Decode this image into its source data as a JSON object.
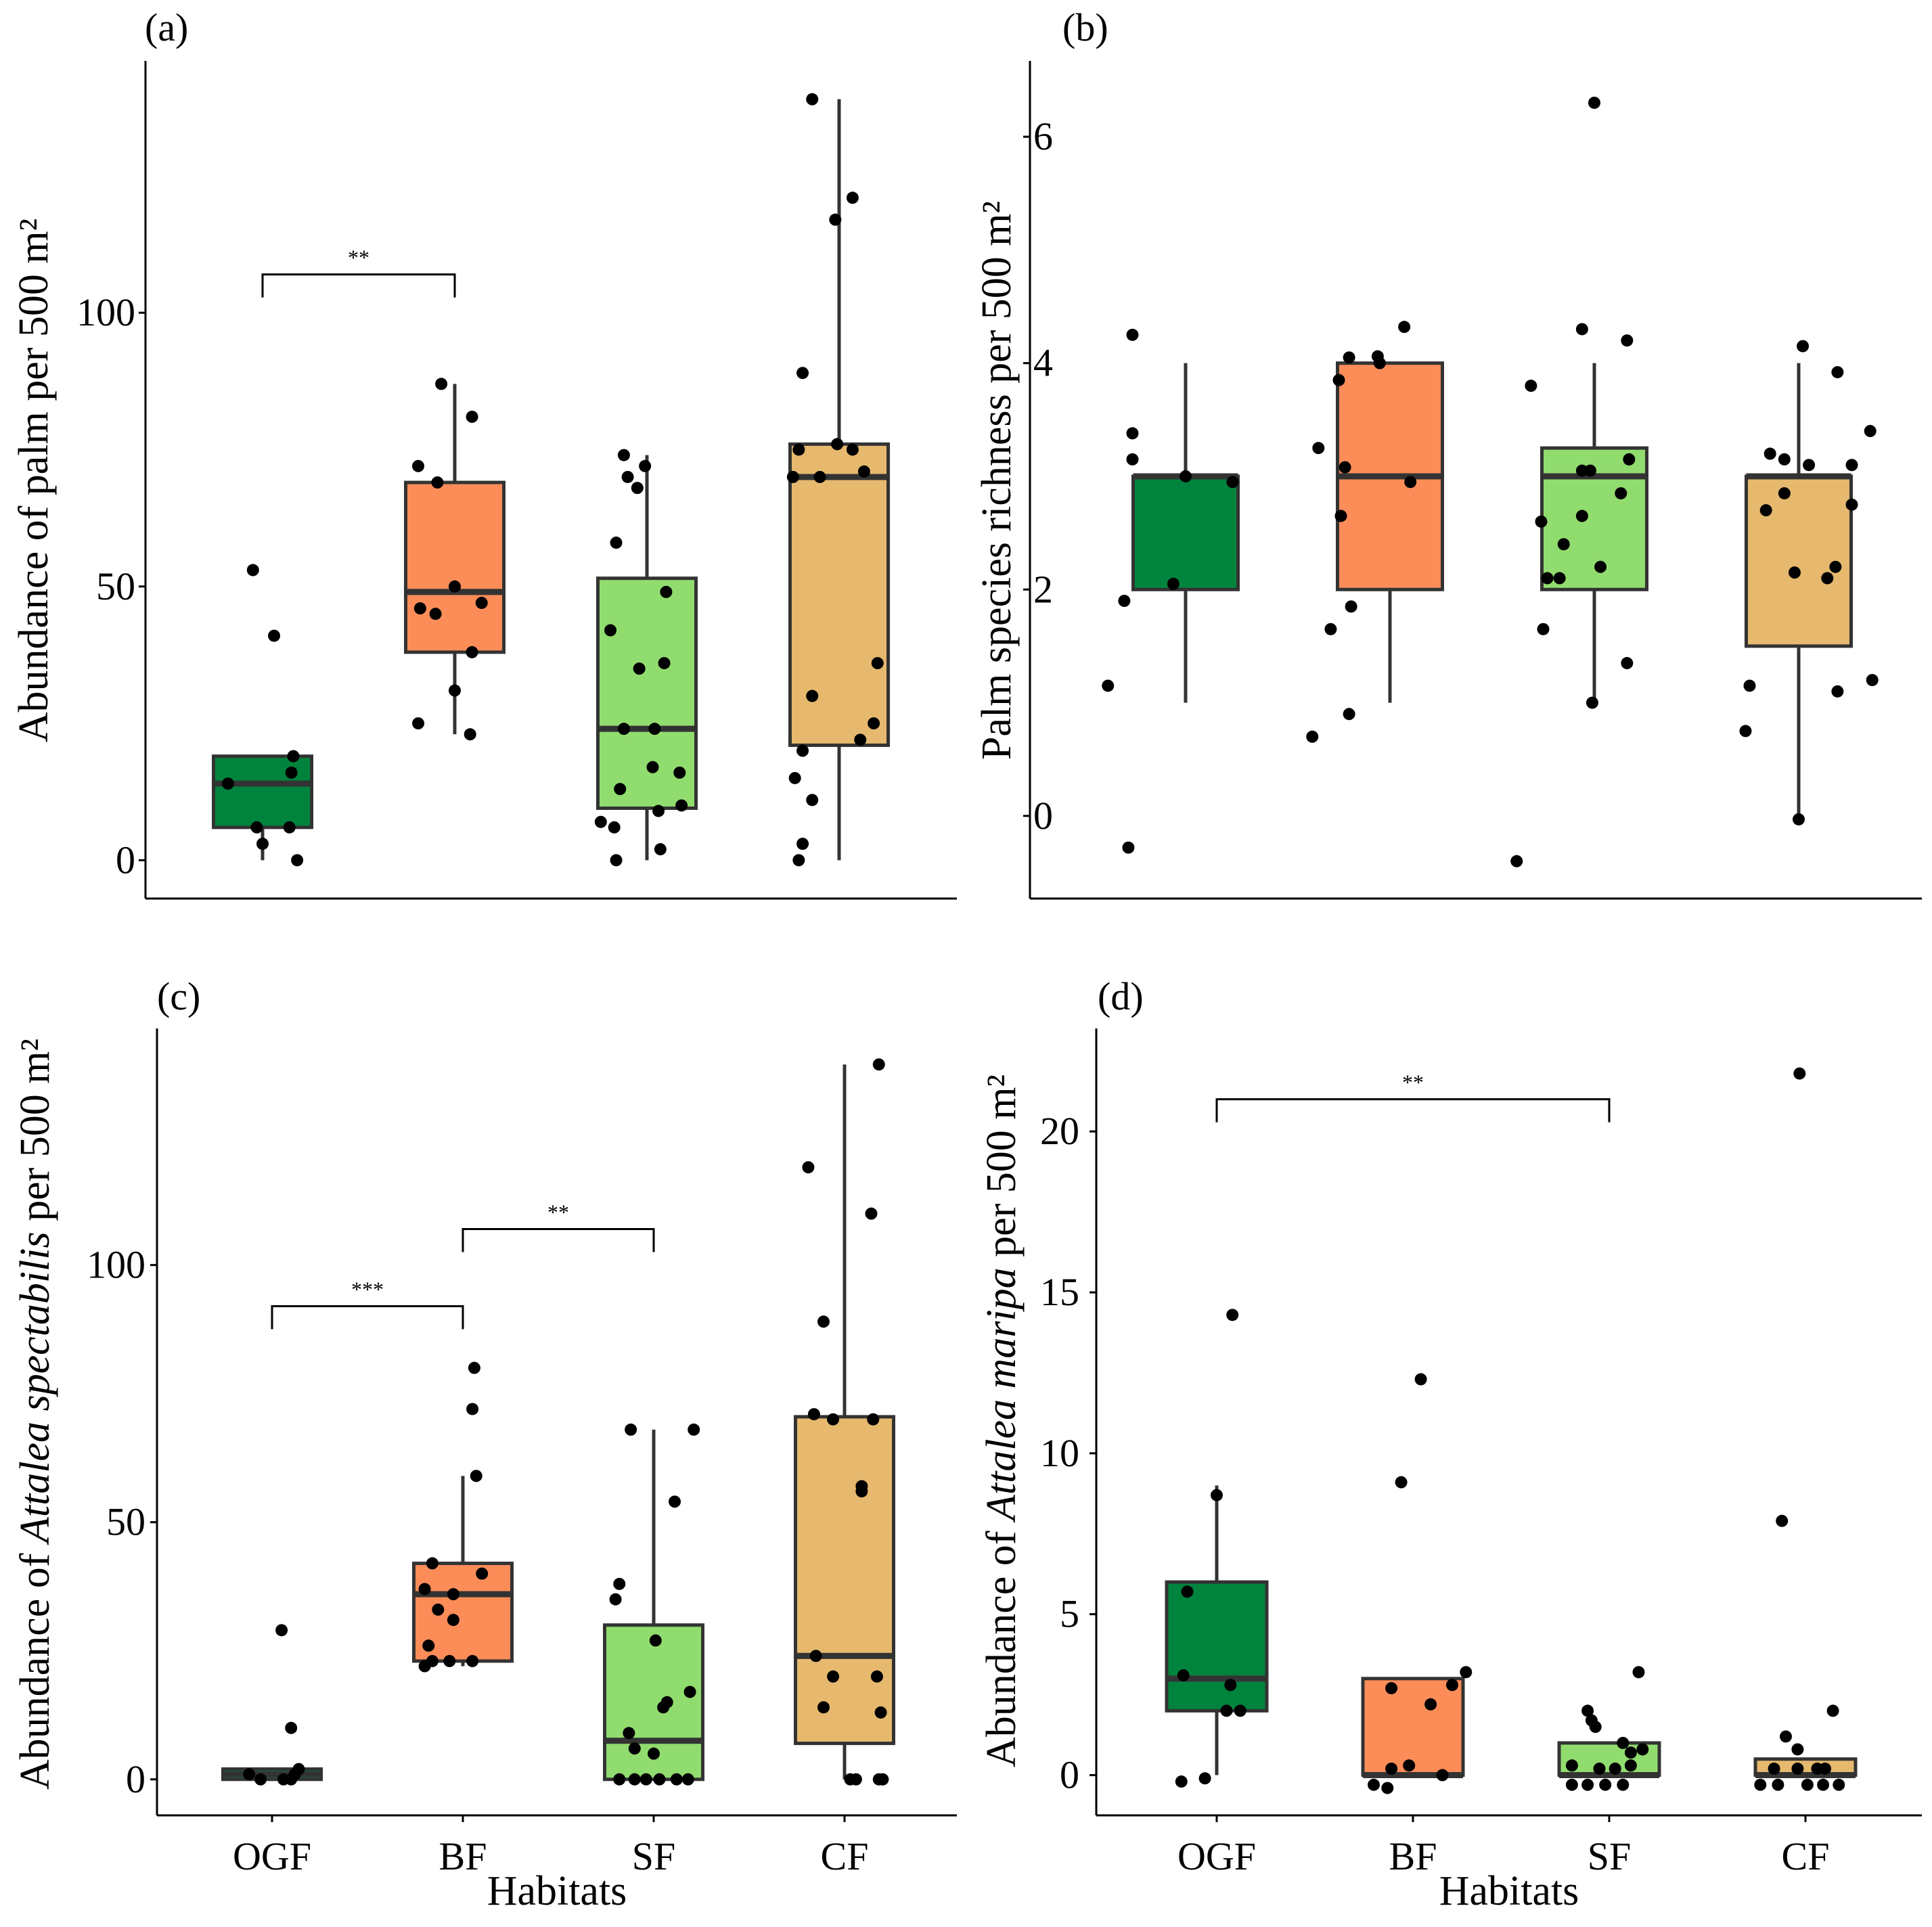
{
  "chart_data": [
    {
      "panel": "(a)",
      "type": "box",
      "title": "",
      "xlabel": "",
      "ylabel": "Abundance of palm per 500 m²",
      "categories": [
        "OGF",
        "BF",
        "SF",
        "CF"
      ],
      "show_x_ticks": false,
      "ylim": [
        -7,
        146
      ],
      "yticks": [
        0,
        50,
        100
      ],
      "boxes": [
        {
          "q1": 6,
          "median": 14,
          "q3": 19,
          "whisker_low": 0,
          "whisker_high": 19
        },
        {
          "q1": 38,
          "median": 49,
          "q3": 69,
          "whisker_low": 23,
          "whisker_high": 87
        },
        {
          "q1": 9.5,
          "median": 24,
          "q3": 51.5,
          "whisker_low": 0,
          "whisker_high": 74
        },
        {
          "q1": 21,
          "median": 70,
          "q3": 76,
          "whisker_low": 0,
          "whisker_high": 139
        }
      ],
      "points": [
        [
          [
            -0.05,
            53
          ],
          [
            0.06,
            41
          ],
          [
            -0.18,
            14
          ],
          [
            0.16,
            19
          ],
          [
            0.15,
            16
          ],
          [
            -0.03,
            6
          ],
          [
            0.14,
            6
          ],
          [
            0.0,
            3
          ],
          [
            0.18,
            0
          ]
        ],
        [
          [
            -0.07,
            87
          ],
          [
            0.09,
            81
          ],
          [
            -0.19,
            72
          ],
          [
            -0.09,
            69
          ],
          [
            0.0,
            50
          ],
          [
            -0.18,
            46
          ],
          [
            -0.1,
            45
          ],
          [
            0.0,
            31
          ],
          [
            0.09,
            38
          ],
          [
            -0.19,
            25
          ],
          [
            0.08,
            23
          ],
          [
            0.14,
            47
          ]
        ],
        [
          [
            -0.12,
            74
          ],
          [
            -0.01,
            72
          ],
          [
            -0.1,
            70
          ],
          [
            -0.05,
            68
          ],
          [
            -0.16,
            58
          ],
          [
            0.1,
            49
          ],
          [
            -0.19,
            42
          ],
          [
            0.09,
            36
          ],
          [
            -0.04,
            35
          ],
          [
            -0.12,
            24
          ],
          [
            0.04,
            24
          ],
          [
            0.03,
            17
          ],
          [
            0.17,
            16
          ],
          [
            -0.14,
            13
          ],
          [
            0.06,
            9
          ],
          [
            0.18,
            10
          ],
          [
            -0.24,
            7
          ],
          [
            -0.17,
            6
          ],
          [
            0.07,
            2
          ],
          [
            -0.16,
            0
          ]
        ],
        [
          [
            -0.14,
            139
          ],
          [
            0.07,
            121
          ],
          [
            -0.02,
            117
          ],
          [
            -0.19,
            89
          ],
          [
            -0.01,
            76
          ],
          [
            -0.21,
            75
          ],
          [
            0.07,
            75
          ],
          [
            0.13,
            71
          ],
          [
            -0.24,
            70
          ],
          [
            -0.1,
            70
          ],
          [
            0.2,
            36
          ],
          [
            -0.14,
            30
          ],
          [
            0.18,
            25
          ],
          [
            0.11,
            22
          ],
          [
            -0.19,
            20
          ],
          [
            -0.23,
            15
          ],
          [
            -0.14,
            11
          ],
          [
            -0.19,
            3
          ],
          [
            -0.21,
            0
          ]
        ]
      ],
      "significance": [
        {
          "from": "OGF",
          "to": "BF",
          "y": 107,
          "label": "**"
        }
      ]
    },
    {
      "panel": "(b)",
      "type": "box",
      "title": "",
      "xlabel": "",
      "ylabel": "Palm species richness per 500 m²",
      "categories": [
        "OGF",
        "BF",
        "SF",
        "CF"
      ],
      "show_x_ticks": false,
      "ylim": [
        -0.73,
        6.67
      ],
      "yticks": [
        0,
        2,
        4,
        6
      ],
      "boxes": [
        {
          "q1": 2,
          "median": 3,
          "q3": 3,
          "whisker_low": 1,
          "whisker_high": 4
        },
        {
          "q1": 2,
          "median": 3,
          "q3": 4,
          "whisker_low": 1,
          "whisker_high": 4
        },
        {
          "q1": 2,
          "median": 3,
          "q3": 3.25,
          "whisker_low": 1,
          "whisker_high": 4
        },
        {
          "q1": 1.5,
          "median": 3,
          "q3": 3,
          "whisker_low": 0,
          "whisker_high": 4
        }
      ],
      "points": [
        [
          [
            -0.26,
            4.25
          ],
          [
            -0.26,
            3.38
          ],
          [
            -0.26,
            3.15
          ],
          [
            0.0,
            3.0
          ],
          [
            0.23,
            2.95
          ],
          [
            -0.06,
            2.05
          ],
          [
            -0.3,
            1.9
          ],
          [
            -0.38,
            1.15
          ],
          [
            -0.28,
            -0.28
          ]
        ],
        [
          [
            0.07,
            4.32
          ],
          [
            -0.06,
            4.06
          ],
          [
            -0.2,
            4.05
          ],
          [
            -0.05,
            4.0
          ],
          [
            -0.25,
            3.85
          ],
          [
            -0.35,
            3.25
          ],
          [
            -0.22,
            3.08
          ],
          [
            0.1,
            2.95
          ],
          [
            -0.24,
            2.65
          ],
          [
            -0.29,
            1.65
          ],
          [
            -0.19,
            1.85
          ],
          [
            -0.2,
            0.9
          ],
          [
            -0.38,
            0.7
          ]
        ],
        [
          [
            0.0,
            6.3
          ],
          [
            -0.06,
            4.3
          ],
          [
            0.16,
            4.2
          ],
          [
            -0.31,
            3.8
          ],
          [
            -0.06,
            3.05
          ],
          [
            0.17,
            3.15
          ],
          [
            -0.02,
            3.05
          ],
          [
            0.13,
            2.85
          ],
          [
            -0.06,
            2.65
          ],
          [
            -0.15,
            2.4
          ],
          [
            -0.26,
            2.6
          ],
          [
            0.03,
            2.2
          ],
          [
            -0.17,
            2.1
          ],
          [
            -0.23,
            2.1
          ],
          [
            -0.25,
            1.65
          ],
          [
            0.16,
            1.35
          ],
          [
            -0.01,
            1.0
          ],
          [
            -0.38,
            -0.4
          ]
        ],
        [
          [
            0.02,
            4.15
          ],
          [
            0.19,
            3.92
          ],
          [
            -0.14,
            3.2
          ],
          [
            -0.07,
            3.15
          ],
          [
            0.35,
            3.4
          ],
          [
            0.05,
            3.1
          ],
          [
            0.26,
            3.1
          ],
          [
            -0.07,
            2.85
          ],
          [
            0.26,
            2.75
          ],
          [
            -0.16,
            2.7
          ],
          [
            0.18,
            2.2
          ],
          [
            -0.02,
            2.15
          ],
          [
            0.14,
            2.1
          ],
          [
            -0.24,
            1.15
          ],
          [
            -0.26,
            0.75
          ],
          [
            0.19,
            1.1
          ],
          [
            0.36,
            1.2
          ],
          [
            0.0,
            -0.03
          ]
        ]
      ],
      "significance": []
    },
    {
      "panel": "(c)",
      "type": "box",
      "title": "",
      "xlabel": "Habitats",
      "ylabel": "Abundance of Attalea spectabilis per 500 m²",
      "ylabel_parts": {
        "before": "Abundance of ",
        "italic": "Attalea spectabilis",
        "after": " per 500 m²"
      },
      "categories": [
        "OGF",
        "BF",
        "SF",
        "CF"
      ],
      "show_x_ticks": true,
      "ylim": [
        -7,
        146
      ],
      "yticks": [
        0,
        50,
        100
      ],
      "boxes": [
        {
          "q1": 0,
          "median": 1,
          "q3": 2,
          "whisker_low": 0,
          "whisker_high": 2
        },
        {
          "q1": 23,
          "median": 36,
          "q3": 42,
          "whisker_low": 22,
          "whisker_high": 59
        },
        {
          "q1": 0,
          "median": 7.5,
          "q3": 30,
          "whisker_low": 0,
          "whisker_high": 68
        },
        {
          "q1": 7,
          "median": 24,
          "q3": 70.5,
          "whisker_low": 0,
          "whisker_high": 139
        }
      ],
      "points": [
        [
          [
            0.05,
            29
          ],
          [
            0.1,
            10
          ],
          [
            -0.12,
            1
          ],
          [
            0.06,
            0
          ],
          [
            0.12,
            1
          ],
          [
            0.14,
            2
          ],
          [
            -0.06,
            0
          ],
          [
            0.1,
            0
          ]
        ],
        [
          [
            0.06,
            80
          ],
          [
            0.05,
            72
          ],
          [
            0.07,
            59
          ],
          [
            -0.16,
            42
          ],
          [
            0.1,
            40
          ],
          [
            -0.2,
            37
          ],
          [
            -0.05,
            36
          ],
          [
            -0.13,
            33
          ],
          [
            -0.05,
            31
          ],
          [
            -0.18,
            26
          ],
          [
            -0.16,
            23
          ],
          [
            -0.07,
            23
          ],
          [
            0.05,
            23
          ],
          [
            -0.2,
            22
          ]
        ],
        [
          [
            -0.12,
            68
          ],
          [
            0.21,
            68
          ],
          [
            0.11,
            54
          ],
          [
            -0.18,
            38
          ],
          [
            -0.2,
            35
          ],
          [
            0.01,
            27
          ],
          [
            0.19,
            17
          ],
          [
            0.07,
            15
          ],
          [
            0.05,
            14
          ],
          [
            -0.13,
            9
          ],
          [
            -0.1,
            6
          ],
          [
            0.0,
            5
          ],
          [
            -0.18,
            0
          ],
          [
            -0.1,
            0
          ],
          [
            -0.04,
            0
          ],
          [
            0.03,
            0
          ],
          [
            0.12,
            0
          ],
          [
            0.18,
            0
          ]
        ],
        [
          [
            0.18,
            139
          ],
          [
            -0.19,
            119
          ],
          [
            0.14,
            110
          ],
          [
            -0.11,
            89
          ],
          [
            -0.16,
            71
          ],
          [
            -0.06,
            70
          ],
          [
            0.15,
            70
          ],
          [
            0.09,
            57
          ],
          [
            0.09,
            56
          ],
          [
            -0.06,
            20
          ],
          [
            0.17,
            20
          ],
          [
            -0.11,
            14
          ],
          [
            0.19,
            13
          ],
          [
            -0.15,
            24
          ],
          [
            0.03,
            0
          ],
          [
            0.06,
            0
          ],
          [
            0.18,
            0
          ],
          [
            0.2,
            0
          ]
        ]
      ],
      "significance": [
        {
          "from": "OGF",
          "to": "BF",
          "y": 92,
          "label": "***"
        },
        {
          "from": "BF",
          "to": "SF",
          "y": 107,
          "label": "**"
        }
      ]
    },
    {
      "panel": "(d)",
      "type": "box",
      "title": "",
      "xlabel": "Habitats",
      "ylabel": "Abundance of Attalea maripa per 500 m²",
      "ylabel_parts": {
        "before": "Abundance of ",
        "italic": "Attalea maripa",
        "after": " per 500 m²"
      },
      "categories": [
        "OGF",
        "BF",
        "SF",
        "CF"
      ],
      "show_x_ticks": true,
      "ylim": [
        -1.25,
        23.2
      ],
      "yticks": [
        0,
        5,
        10,
        15,
        20
      ],
      "boxes": [
        {
          "q1": 2,
          "median": 3,
          "q3": 6,
          "whisker_low": 0,
          "whisker_high": 9
        },
        {
          "q1": 0,
          "median": 0,
          "q3": 3,
          "whisker_low": 0,
          "whisker_high": 3
        },
        {
          "q1": 0,
          "median": 0,
          "q3": 1,
          "whisker_low": 0,
          "whisker_high": 1
        },
        {
          "q1": 0,
          "median": 0,
          "q3": 0.5,
          "whisker_low": 0,
          "whisker_high": 0.5
        }
      ],
      "points": [
        [
          [
            0.08,
            14.3
          ],
          [
            0.0,
            8.7
          ],
          [
            -0.15,
            5.7
          ],
          [
            -0.17,
            3.1
          ],
          [
            0.07,
            2.8
          ],
          [
            0.05,
            2.0
          ],
          [
            0.12,
            2.0
          ],
          [
            -0.18,
            -0.2
          ],
          [
            -0.06,
            -0.1
          ]
        ],
        [
          [
            0.04,
            12.3
          ],
          [
            -0.06,
            9.1
          ],
          [
            0.27,
            3.2
          ],
          [
            0.2,
            2.8
          ],
          [
            -0.11,
            2.7
          ],
          [
            0.09,
            2.2
          ],
          [
            -0.02,
            0.3
          ],
          [
            -0.11,
            0.2
          ],
          [
            0.15,
            0.0
          ],
          [
            -0.2,
            -0.3
          ],
          [
            -0.13,
            -0.4
          ]
        ],
        [
          [
            0.15,
            3.2
          ],
          [
            -0.11,
            2.0
          ],
          [
            -0.09,
            1.7
          ],
          [
            -0.07,
            1.5
          ],
          [
            0.07,
            1.0
          ],
          [
            0.11,
            0.7
          ],
          [
            0.17,
            0.8
          ],
          [
            -0.19,
            0.3
          ],
          [
            -0.05,
            0.2
          ],
          [
            0.03,
            0.2
          ],
          [
            0.11,
            0.3
          ],
          [
            -0.19,
            -0.3
          ],
          [
            -0.11,
            -0.3
          ],
          [
            -0.02,
            -0.3
          ],
          [
            0.07,
            -0.3
          ]
        ],
        [
          [
            -0.03,
            21.8
          ],
          [
            -0.12,
            7.9
          ],
          [
            0.14,
            2.0
          ],
          [
            -0.1,
            1.2
          ],
          [
            -0.04,
            0.8
          ],
          [
            -0.16,
            0.2
          ],
          [
            -0.04,
            0.2
          ],
          [
            0.06,
            0.2
          ],
          [
            0.1,
            0.2
          ],
          [
            -0.23,
            -0.3
          ],
          [
            -0.14,
            -0.3
          ],
          [
            0.01,
            -0.3
          ],
          [
            0.09,
            -0.3
          ],
          [
            0.17,
            -0.3
          ]
        ]
      ],
      "significance": [
        {
          "from": "OGF",
          "to": "SF",
          "y": 21,
          "label": "**"
        }
      ]
    }
  ],
  "colors": {
    "OGF": "#00843d",
    "BF": "#fc8d59",
    "SF": "#91dc6e",
    "CF": "#e6b96e",
    "box_line": "#333333",
    "point": "#000000"
  }
}
